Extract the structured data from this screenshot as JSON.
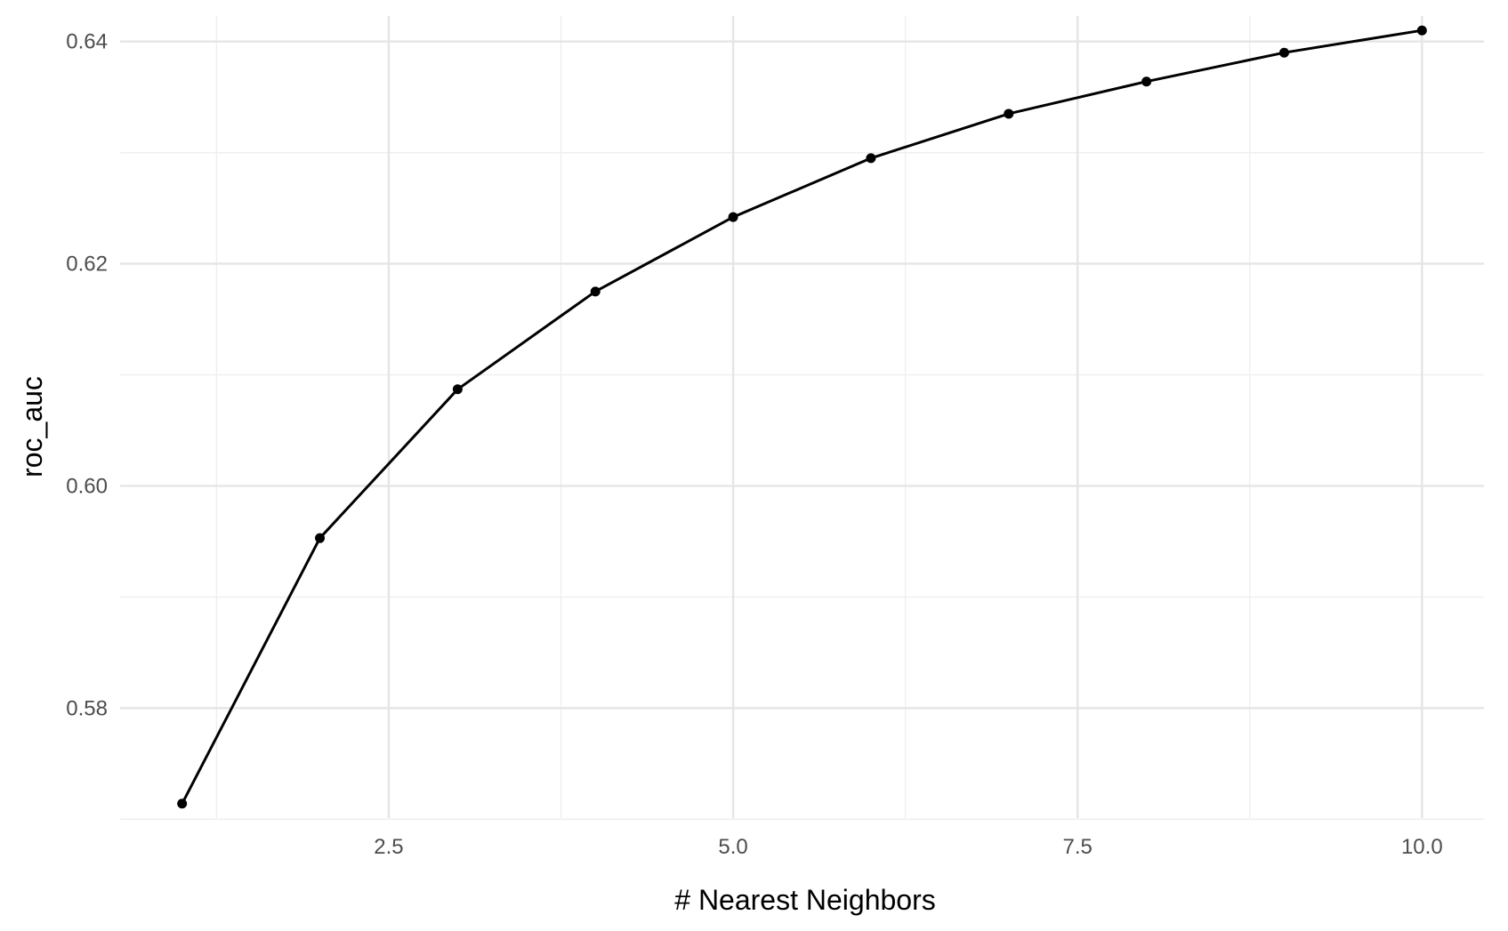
{
  "chart_data": {
    "type": "line",
    "title": "",
    "xlabel": "# Nearest Neighbors",
    "ylabel": "roc_auc",
    "x": [
      1,
      2,
      3,
      4,
      5,
      6,
      7,
      8,
      9,
      10
    ],
    "series": [
      {
        "values": [
          0.5714,
          0.5953,
          0.6087,
          0.6175,
          0.6242,
          0.6295,
          0.6335,
          0.6364,
          0.639,
          0.641
        ]
      }
    ],
    "xlim": [
      0.55,
      10.45
    ],
    "ylim": [
      0.5701,
      0.6423
    ],
    "xticks": [
      2.5,
      5.0,
      7.5,
      10.0
    ],
    "xtick_labels": [
      "2.5",
      "5.0",
      "7.5",
      "10.0"
    ],
    "yticks": [
      0.58,
      0.6,
      0.62,
      0.64
    ],
    "ytick_labels": [
      "0.58",
      "0.60",
      "0.62",
      "0.64"
    ],
    "x_minor_ticks": [
      1.25,
      3.75,
      6.25,
      8.75
    ],
    "y_minor_ticks": [
      0.57,
      0.59,
      0.61,
      0.63
    ],
    "grid": true,
    "legend": "none",
    "colors": {
      "line": "#000000",
      "points": "#000000",
      "grid_major": "#e5e5e5",
      "grid_minor": "#efefef",
      "tick_text": "#4d4d4d",
      "background": "#ffffff"
    }
  }
}
